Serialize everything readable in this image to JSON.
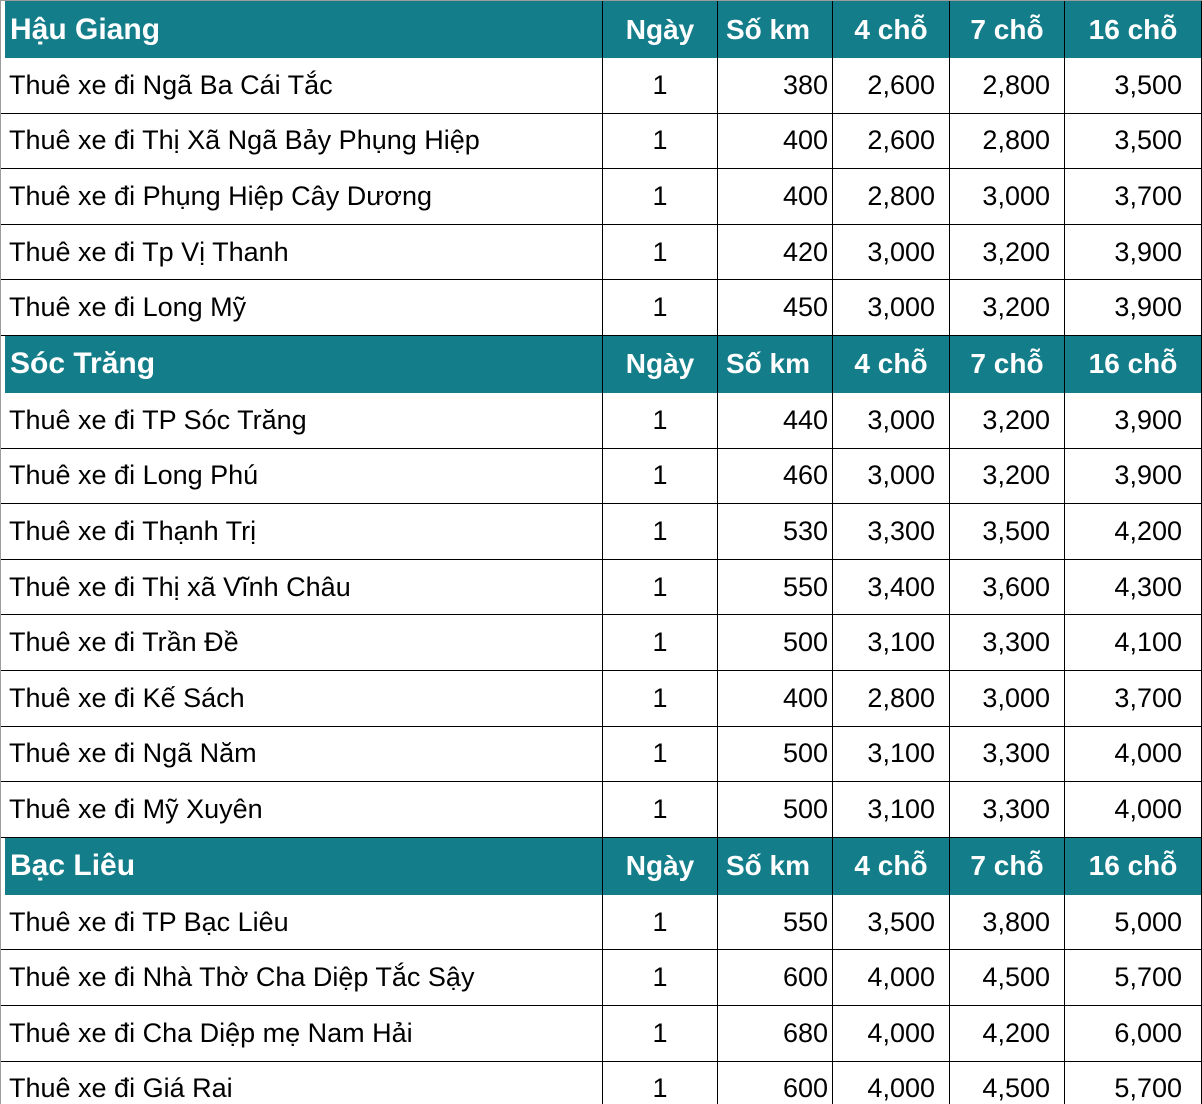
{
  "colors": {
    "section_header_bg": "#147D8A",
    "header_text": "#ffffff",
    "body_text": "#000000",
    "grid_line": "#000000",
    "outer_border": "#9c9c9c"
  },
  "table": {
    "columns": [
      "Ngày",
      "Số km",
      "4 chỗ",
      "7 chỗ",
      "16 chỗ"
    ],
    "sections": [
      {
        "name": "Hậu Giang",
        "rows": [
          {
            "route": "Thuê xe đi Ngã Ba Cái Tắc",
            "days": "1",
            "km": "380",
            "seat4": "2,600",
            "seat7": "2,800",
            "seat16": "3,500"
          },
          {
            "route": "Thuê xe đi Thị Xã Ngã Bảy Phụng Hiệp",
            "days": "1",
            "km": "400",
            "seat4": "2,600",
            "seat7": "2,800",
            "seat16": "3,500"
          },
          {
            "route": "Thuê xe đi Phụng Hiệp Cây Dương",
            "days": "1",
            "km": "400",
            "seat4": "2,800",
            "seat7": "3,000",
            "seat16": "3,700"
          },
          {
            "route": "Thuê xe đi Tp Vị Thanh",
            "days": "1",
            "km": "420",
            "seat4": "3,000",
            "seat7": "3,200",
            "seat16": "3,900"
          },
          {
            "route": "Thuê xe đi Long Mỹ",
            "days": "1",
            "km": "450",
            "seat4": "3,000",
            "seat7": "3,200",
            "seat16": "3,900"
          }
        ]
      },
      {
        "name": "Sóc Trăng",
        "rows": [
          {
            "route": "Thuê xe đi TP Sóc Trăng",
            "days": "1",
            "km": "440",
            "seat4": "3,000",
            "seat7": "3,200",
            "seat16": "3,900"
          },
          {
            "route": "Thuê xe đi Long Phú",
            "days": "1",
            "km": "460",
            "seat4": "3,000",
            "seat7": "3,200",
            "seat16": "3,900"
          },
          {
            "route": "Thuê xe đi Thạnh Trị",
            "days": "1",
            "km": "530",
            "seat4": "3,300",
            "seat7": "3,500",
            "seat16": "4,200"
          },
          {
            "route": "Thuê xe đi Thị xã Vĩnh Châu",
            "days": "1",
            "km": "550",
            "seat4": "3,400",
            "seat7": "3,600",
            "seat16": "4,300"
          },
          {
            "route": "Thuê xe đi Trần Đề",
            "days": "1",
            "km": "500",
            "seat4": "3,100",
            "seat7": "3,300",
            "seat16": "4,100"
          },
          {
            "route": "Thuê xe đi Kế Sách",
            "days": "1",
            "km": "400",
            "seat4": "2,800",
            "seat7": "3,000",
            "seat16": "3,700"
          },
          {
            "route": "Thuê xe đi Ngã Năm",
            "days": "1",
            "km": "500",
            "seat4": "3,100",
            "seat7": "3,300",
            "seat16": "4,000"
          },
          {
            "route": "Thuê xe đi Mỹ Xuyên",
            "days": "1",
            "km": "500",
            "seat4": "3,100",
            "seat7": "3,300",
            "seat16": "4,000"
          }
        ]
      },
      {
        "name": "Bạc Liêu",
        "rows": [
          {
            "route": "Thuê xe đi TP Bạc Liêu",
            "days": "1",
            "km": "550",
            "seat4": "3,500",
            "seat7": "3,800",
            "seat16": "5,000"
          },
          {
            "route": "Thuê xe đi Nhà Thờ Cha Diệp Tắc Sậy",
            "days": "1",
            "km": "600",
            "seat4": "4,000",
            "seat7": "4,500",
            "seat16": "5,700"
          },
          {
            "route": "Thuê xe đi Cha Diệp mẹ Nam Hải",
            "days": "1",
            "km": "680",
            "seat4": "4,000",
            "seat7": "4,200",
            "seat16": "6,000"
          },
          {
            "route": "Thuê xe đi Giá Rai",
            "days": "1",
            "km": "600",
            "seat4": "4,000",
            "seat7": "4,500",
            "seat16": "5,700"
          }
        ]
      }
    ]
  }
}
